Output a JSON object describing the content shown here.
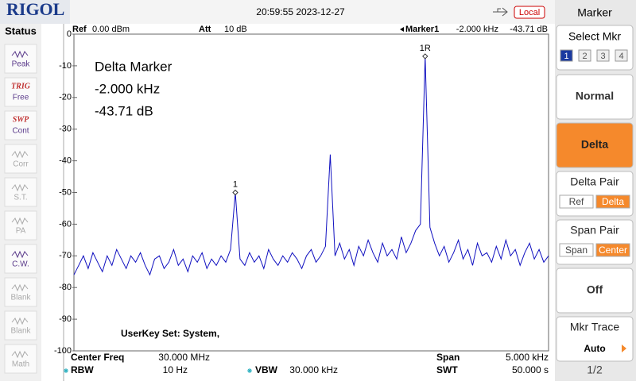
{
  "header": {
    "brand": "RIGOL",
    "datetime": "20:59:55 2023-12-27",
    "mode": "Local"
  },
  "status": {
    "title": "Status",
    "items": [
      {
        "tag": null,
        "label": "Peak",
        "active": true
      },
      {
        "tag": "TRIG",
        "label": "Free",
        "active": true
      },
      {
        "tag": "SWP",
        "label": "Cont",
        "active": true
      },
      {
        "tag": null,
        "label": "Corr",
        "active": false
      },
      {
        "tag": null,
        "label": "S.T.",
        "active": false
      },
      {
        "tag": null,
        "label": "PA",
        "active": false
      },
      {
        "tag": null,
        "label": "C.W.",
        "active": true
      },
      {
        "tag": null,
        "label": "Blank",
        "active": false
      },
      {
        "tag": null,
        "label": "Blank",
        "active": false
      },
      {
        "tag": null,
        "label": "Math",
        "active": false
      }
    ]
  },
  "chart_data": {
    "type": "line",
    "color": "#1010c0",
    "info": {
      "ref_label": "Ref",
      "ref": "0.00 dBm",
      "att_label": "Att",
      "att": "10 dB",
      "marker_label": "Marker1",
      "marker_freq": "-2.000 kHz",
      "marker_level": "-43.71 dB"
    },
    "annotations": [
      "Delta Marker",
      "-2.000 kHz",
      "-43.71 dB"
    ],
    "userkey": "UserKey Set:   System,",
    "footer": {
      "center_label": "Center Freq",
      "center": "30.000 MHz",
      "span_label": "Span",
      "span": "5.000 kHz",
      "rbw_label": "RBW",
      "rbw": "10 Hz",
      "vbw_label": "VBW",
      "vbw": "30.000 kHz",
      "swt_label": "SWT",
      "swt": "50.000 s"
    },
    "ylim": [
      -100,
      0
    ],
    "yticks": [
      0,
      -10,
      -20,
      -30,
      -40,
      -50,
      -60,
      -70,
      -80,
      -90,
      -100
    ],
    "grid": false,
    "markers": [
      {
        "label": "1",
        "value": -50
      },
      {
        "label": "1R",
        "value": -7
      }
    ],
    "values": [
      -76,
      -73,
      -70,
      -74,
      -69,
      -72,
      -75,
      -70,
      -73,
      -68,
      -71,
      -74,
      -70,
      -72,
      -69,
      -73,
      -76,
      -71,
      -70,
      -74,
      -72,
      -68,
      -73,
      -71,
      -75,
      -70,
      -72,
      -69,
      -74,
      -71,
      -73,
      -70,
      -72,
      -68,
      -50,
      -71,
      -73,
      -69,
      -72,
      -70,
      -74,
      -68,
      -71,
      -73,
      -70,
      -72,
      -69,
      -71,
      -74,
      -70,
      -68,
      -72,
      -70,
      -67,
      -38,
      -70,
      -66,
      -71,
      -68,
      -73,
      -67,
      -70,
      -65,
      -69,
      -72,
      -66,
      -70,
      -68,
      -71,
      -64,
      -69,
      -66,
      -62,
      -60,
      -7,
      -61,
      -66,
      -70,
      -67,
      -72,
      -69,
      -65,
      -71,
      -68,
      -73,
      -66,
      -70,
      -69,
      -72,
      -67,
      -71,
      -65,
      -70,
      -68,
      -73,
      -69,
      -66,
      -71,
      -68,
      -72,
      -70
    ]
  },
  "menu": {
    "title": "Marker",
    "select": {
      "label": "Select Mkr",
      "options": [
        "1",
        "2",
        "3",
        "4"
      ]
    },
    "normal": "Normal",
    "delta": "Delta",
    "delta_pair": {
      "label": "Delta Pair",
      "options": [
        "Ref",
        "Delta"
      ]
    },
    "span_pair": {
      "label": "Span Pair",
      "options": [
        "Span",
        "Center"
      ]
    },
    "off": "Off",
    "trace": {
      "label": "Mkr Trace",
      "value": "Auto"
    },
    "page": "1/2"
  }
}
